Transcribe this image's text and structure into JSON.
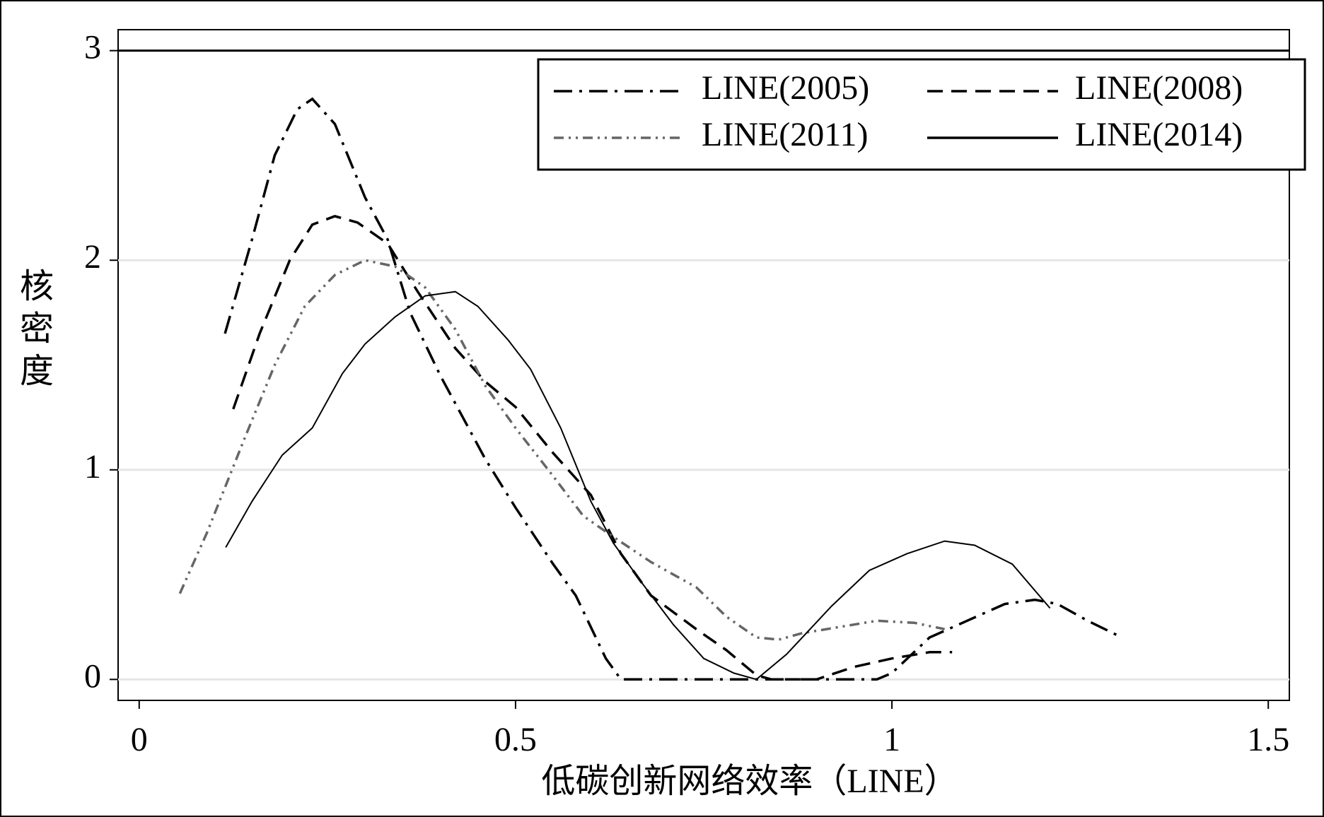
{
  "chart_data": {
    "type": "line",
    "xlabel": "低碳创新网络效率（LINE）",
    "ylabel": "核密度",
    "xlim": [
      -0.028,
      1.528
    ],
    "xticks": [
      0,
      0.5,
      1,
      1.5
    ],
    "ylim": [
      -0.1,
      3.1
    ],
    "yticks": [
      0,
      1,
      2,
      3
    ],
    "grid": true,
    "reference_line": 3,
    "legend": "upper right",
    "series": [
      {
        "name": "LINE(2005)",
        "color": "#000000",
        "dash": "dashdot",
        "x": [
          0.114,
          0.15,
          0.18,
          0.21,
          0.23,
          0.26,
          0.3,
          0.33,
          0.36,
          0.4,
          0.43,
          0.46,
          0.5,
          0.55,
          0.58,
          0.62,
          0.64,
          0.7,
          0.8,
          0.9,
          0.98,
          1.0,
          1.05,
          1.1,
          1.15,
          1.19,
          1.22,
          1.26,
          1.3
        ],
        "values": [
          1.65,
          2.1,
          2.5,
          2.72,
          2.77,
          2.65,
          2.3,
          2.1,
          1.75,
          1.45,
          1.25,
          1.05,
          0.82,
          0.55,
          0.4,
          0.1,
          0,
          0,
          0,
          0,
          0,
          0.03,
          0.2,
          0.28,
          0.36,
          0.38,
          0.36,
          0.28,
          0.21
        ]
      },
      {
        "name": "LINE(2008)",
        "color": "#000000",
        "dash": "dash",
        "x": [
          0.125,
          0.16,
          0.2,
          0.23,
          0.26,
          0.29,
          0.33,
          0.37,
          0.42,
          0.46,
          0.5,
          0.55,
          0.6,
          0.64,
          0.68,
          0.74,
          0.78,
          0.82,
          0.84,
          0.9,
          0.95,
          1.0,
          1.05,
          1.08
        ],
        "values": [
          1.29,
          1.65,
          2.0,
          2.17,
          2.21,
          2.18,
          2.08,
          1.85,
          1.58,
          1.42,
          1.3,
          1.08,
          0.88,
          0.6,
          0.4,
          0.24,
          0.14,
          0.02,
          0,
          0,
          0.06,
          0.1,
          0.13,
          0.13
        ]
      },
      {
        "name": "LINE(2011)",
        "color": "#666666",
        "dash": "dashdotdot",
        "x": [
          0.054,
          0.09,
          0.14,
          0.18,
          0.22,
          0.26,
          0.3,
          0.34,
          0.38,
          0.42,
          0.46,
          0.5,
          0.55,
          0.59,
          0.63,
          0.68,
          0.74,
          0.78,
          0.82,
          0.85,
          0.88,
          0.93,
          0.98,
          1.03,
          1.07
        ],
        "values": [
          0.41,
          0.7,
          1.15,
          1.5,
          1.78,
          1.93,
          2.0,
          1.97,
          1.87,
          1.67,
          1.4,
          1.2,
          0.97,
          0.78,
          0.68,
          0.56,
          0.44,
          0.3,
          0.2,
          0.19,
          0.22,
          0.25,
          0.28,
          0.27,
          0.24
        ]
      },
      {
        "name": "LINE(2014)",
        "color": "#000000",
        "dash": "solid",
        "x": [
          0.115,
          0.15,
          0.19,
          0.23,
          0.27,
          0.3,
          0.34,
          0.38,
          0.42,
          0.45,
          0.49,
          0.52,
          0.56,
          0.6,
          0.63,
          0.67,
          0.71,
          0.75,
          0.79,
          0.82,
          0.86,
          0.92,
          0.97,
          1.02,
          1.07,
          1.11,
          1.16,
          1.21
        ],
        "values": [
          0.63,
          0.85,
          1.07,
          1.2,
          1.46,
          1.6,
          1.73,
          1.83,
          1.85,
          1.78,
          1.62,
          1.48,
          1.2,
          0.85,
          0.65,
          0.45,
          0.26,
          0.1,
          0.03,
          0,
          0.12,
          0.35,
          0.52,
          0.6,
          0.66,
          0.64,
          0.55,
          0.34
        ]
      }
    ]
  }
}
